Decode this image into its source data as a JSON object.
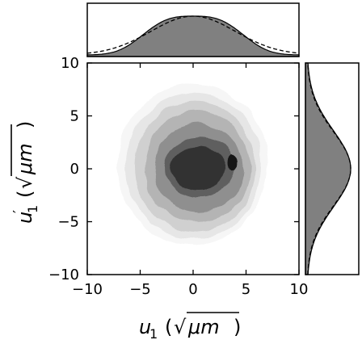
{
  "chart_data": [
    {
      "type": "heatmap",
      "role": "joint-density",
      "kind": "filled-contour",
      "xlabel": "u_1 (√μm)",
      "ylabel": "u_1' (√μm)",
      "xlim": [
        -10,
        10
      ],
      "ylim": [
        -10,
        10
      ],
      "xticks": [
        -10,
        -5,
        0,
        5,
        10
      ],
      "yticks": [
        -10,
        -5,
        0,
        5,
        10
      ],
      "xtick_labels": [
        "−10",
        "−5",
        "0",
        "5",
        "10"
      ],
      "ytick_labels": [
        "−10",
        "−5",
        "0",
        "5",
        "10"
      ],
      "center": [
        0,
        0
      ],
      "levels": [
        {
          "level": 1,
          "rx": 7.1,
          "ry": 7.6,
          "cx": 0.0,
          "cy": 0.4,
          "color": "#f6f6f6"
        },
        {
          "level": 2,
          "rx": 6.4,
          "ry": 6.9,
          "cx": 0.1,
          "cy": 0.3,
          "color": "#e6e6e6"
        },
        {
          "level": 3,
          "rx": 5.7,
          "ry": 6.2,
          "cx": 0.2,
          "cy": 0.2,
          "color": "#d0d0d0"
        },
        {
          "level": 4,
          "rx": 5.0,
          "ry": 5.3,
          "cx": 0.4,
          "cy": 0.2,
          "color": "#b4b4b4"
        },
        {
          "level": 5,
          "rx": 4.2,
          "ry": 4.2,
          "cx": 0.5,
          "cy": 0.1,
          "color": "#8f8f8f"
        },
        {
          "level": 6,
          "rx": 3.3,
          "ry": 2.9,
          "cx": 0.6,
          "cy": 0.1,
          "color": "#5e5e5e"
        },
        {
          "level": 7,
          "rx": 2.6,
          "ry": 2.1,
          "cx": 0.5,
          "cy": 0.0,
          "color": "#333333"
        },
        {
          "level": 8,
          "rx": 0.45,
          "ry": 0.65,
          "cx": 3.7,
          "cy": 0.6,
          "color": "#141414"
        }
      ],
      "grid": false,
      "legend": "none"
    },
    {
      "type": "area",
      "role": "marginal-x",
      "xlim": [
        -10,
        10
      ],
      "series": [
        {
          "style": "filled",
          "color": "#808080",
          "sigma": 4.2,
          "shape": "flat-top"
        },
        {
          "style": "dashed",
          "color": "#000000",
          "sigma": 4.0,
          "shape": "gaussian"
        }
      ]
    },
    {
      "type": "area",
      "role": "marginal-y",
      "ylim": [
        -10,
        10
      ],
      "series": [
        {
          "style": "filled",
          "color": "#808080",
          "sigma": 3.6,
          "shape": "gaussian"
        },
        {
          "style": "dashed",
          "color": "#000000",
          "sigma": 3.5,
          "shape": "gaussian"
        }
      ]
    }
  ]
}
